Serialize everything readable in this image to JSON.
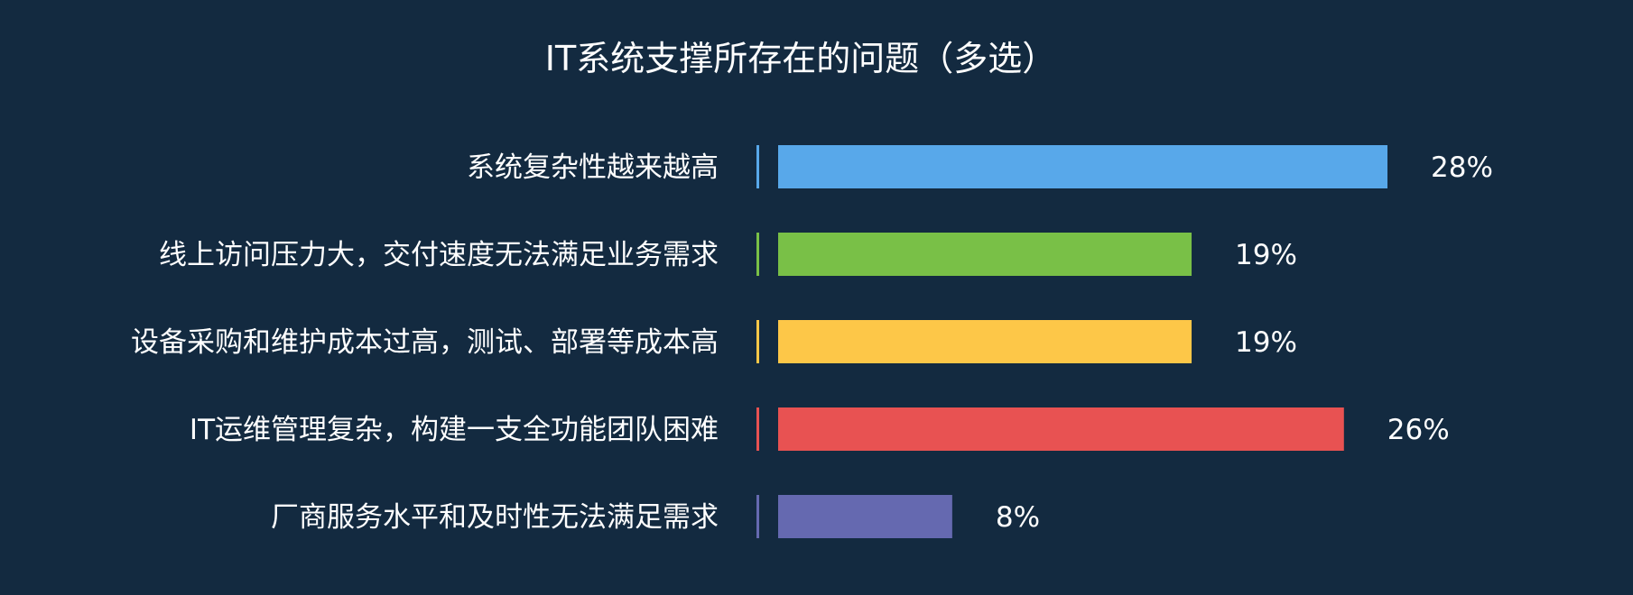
{
  "chart_data": {
    "type": "bar",
    "orientation": "horizontal",
    "title": "IT系统支撑所存在的问题（多选）",
    "categories": [
      "系统复杂性越来越高",
      "线上访问压力大，交付速度无法满足业务需求",
      "设备采购和维护成本过高，测试、部署等成本高",
      "IT运维管理复杂，构建一支全功能团队困难",
      "厂商服务水平和及时性无法满足需求"
    ],
    "values": [
      28,
      19,
      19,
      26,
      8
    ],
    "value_labels": [
      "28%",
      "19%",
      "19%",
      "26%",
      "8%"
    ],
    "colors": [
      "#58a8ea",
      "#79c047",
      "#fdc748",
      "#e85252",
      "#6569b0"
    ],
    "xlim": [
      0,
      28
    ],
    "grid": false,
    "legend": "none"
  }
}
